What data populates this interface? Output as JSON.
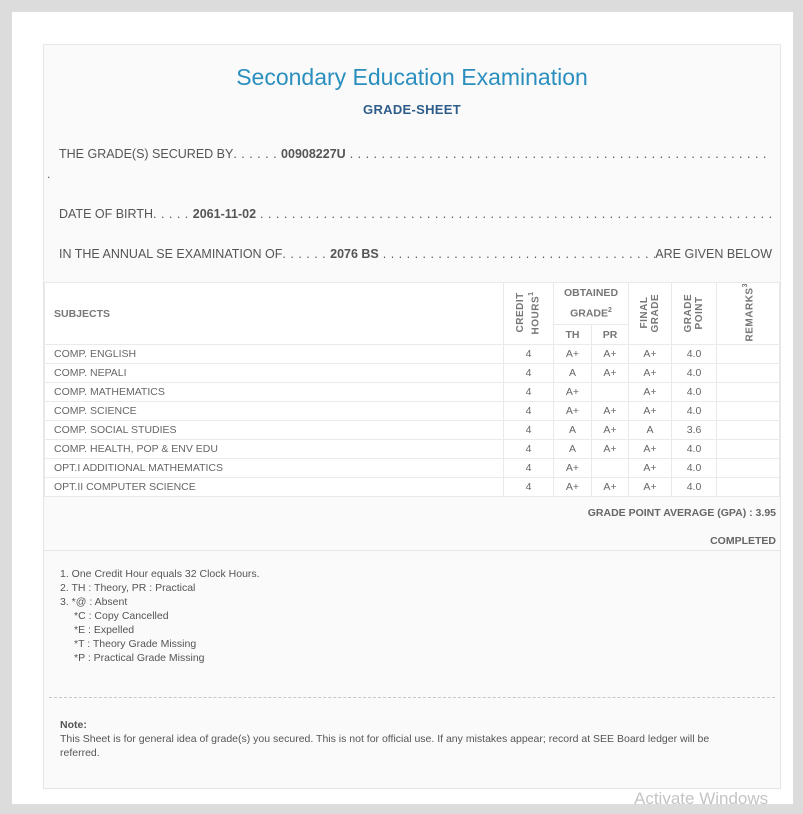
{
  "header": {
    "title": "Secondary Education Examination",
    "subtitle": "GRADE-SHEET"
  },
  "info": {
    "secured_by_label": "THE GRADE(S) SECURED BY",
    "symbol_no": "00908227U",
    "dob_label": "DATE OF BIRTH",
    "dob": "2061-11-02",
    "exam_label": "IN THE ANNUAL SE EXAMINATION OF",
    "exam_year": "2076 BS",
    "exam_suffix": "ARE GIVEN BELOW",
    "stray_dot": "."
  },
  "table": {
    "headers": {
      "subjects": "SUBJECTS",
      "credit": "CREDIT HOURS",
      "credit_sup": "1",
      "obtained": "OBTAINED GRADE",
      "obtained_sup": "2",
      "th": "TH",
      "pr": "PR",
      "final": "FINAL GRADE",
      "gp": "GRADE POINT",
      "remarks": "REMARKS",
      "remarks_sup": "3"
    },
    "rows": [
      {
        "subject": "COMP. ENGLISH",
        "credit": "4",
        "th": "A+",
        "pr": "A+",
        "final": "A+",
        "gp": "4.0",
        "remarks": ""
      },
      {
        "subject": "COMP. NEPALI",
        "credit": "4",
        "th": "A",
        "pr": "A+",
        "final": "A+",
        "gp": "4.0",
        "remarks": ""
      },
      {
        "subject": "COMP. MATHEMATICS",
        "credit": "4",
        "th": "A+",
        "pr": "",
        "final": "A+",
        "gp": "4.0",
        "remarks": ""
      },
      {
        "subject": "COMP. SCIENCE",
        "credit": "4",
        "th": "A+",
        "pr": "A+",
        "final": "A+",
        "gp": "4.0",
        "remarks": ""
      },
      {
        "subject": "COMP. SOCIAL STUDIES",
        "credit": "4",
        "th": "A",
        "pr": "A+",
        "final": "A",
        "gp": "3.6",
        "remarks": ""
      },
      {
        "subject": "COMP. HEALTH, POP & ENV EDU",
        "credit": "4",
        "th": "A",
        "pr": "A+",
        "final": "A+",
        "gp": "4.0",
        "remarks": ""
      },
      {
        "subject": "OPT.I ADDITIONAL MATHEMATICS",
        "credit": "4",
        "th": "A+",
        "pr": "",
        "final": "A+",
        "gp": "4.0",
        "remarks": ""
      },
      {
        "subject": "OPT.II COMPUTER SCIENCE",
        "credit": "4",
        "th": "A+",
        "pr": "A+",
        "final": "A+",
        "gp": "4.0",
        "remarks": ""
      }
    ]
  },
  "summary": {
    "gpa": "GRADE POINT AVERAGE (GPA) : 3.95",
    "status": "COMPLETED"
  },
  "footnotes": [
    "1. One Credit Hour equals 32 Clock Hours.",
    "2. TH : Theory, PR : Practical",
    "3. *@ : Absent",
    "*C : Copy Cancelled",
    "*E : Expelled",
    "*T : Theory Grade Missing",
    "*P : Practical Grade Missing"
  ],
  "note": {
    "title": "Note:",
    "text": "This Sheet is for general idea of grade(s) you secured. This is not for official use. If any mistakes appear; record at SEE Board ledger will be referred."
  },
  "watermark": "Activate Windows"
}
